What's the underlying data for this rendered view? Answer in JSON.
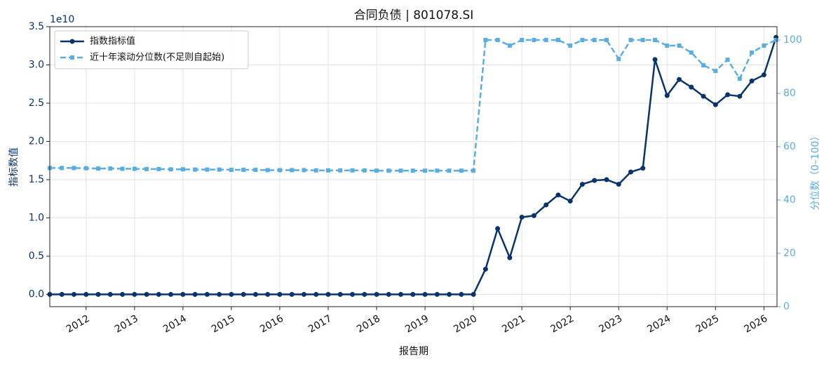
{
  "chart_data": {
    "type": "line",
    "title": "合同负债 | 801078.SI",
    "xlabel": "报告期",
    "ylabel": "指标数值",
    "y2label": "分位数（0–100）",
    "y_offset_label": "1e10",
    "x": [
      2011.25,
      2011.5,
      2011.75,
      2012,
      2012.25,
      2012.5,
      2012.75,
      2013,
      2013.25,
      2013.5,
      2013.75,
      2014,
      2014.25,
      2014.5,
      2014.75,
      2015,
      2015.25,
      2015.5,
      2015.75,
      2016,
      2016.25,
      2016.5,
      2016.75,
      2017,
      2017.25,
      2017.5,
      2017.75,
      2018,
      2018.25,
      2018.5,
      2018.75,
      2019,
      2019.25,
      2019.5,
      2019.75,
      2020,
      2020.25,
      2020.5,
      2020.75,
      2021,
      2021.25,
      2021.5,
      2021.75,
      2022,
      2022.25,
      2022.5,
      2022.75,
      2023,
      2023.25,
      2023.5,
      2023.75,
      2024,
      2024.25,
      2024.5,
      2024.75,
      2025,
      2025.25,
      2025.5,
      2025.75,
      2026,
      2026.25
    ],
    "xlim": [
      2011.25,
      2026.27
    ],
    "xticks": [
      2012,
      2013,
      2014,
      2015,
      2016,
      2017,
      2018,
      2019,
      2020,
      2021,
      2022,
      2023,
      2024,
      2025,
      2026
    ],
    "ylim": [
      -0.16,
      3.5
    ],
    "yticks": [
      {
        "value": 0,
        "label": "0.0"
      },
      {
        "value": 0.5,
        "label": "0.5"
      },
      {
        "value": 1,
        "label": "1.0"
      },
      {
        "value": 1.5,
        "label": "1.5"
      },
      {
        "value": 2,
        "label": "2.0"
      },
      {
        "value": 2.5,
        "label": "2.5"
      },
      {
        "value": 3,
        "label": "3.0"
      },
      {
        "value": 3.5,
        "label": "3.5"
      }
    ],
    "y2lim": [
      0,
      105
    ],
    "y2ticks": [
      0,
      20,
      40,
      60,
      80,
      100
    ],
    "grid": true,
    "legend": "upper left",
    "series": [
      {
        "name": "指数指标值",
        "color": "#08336b",
        "marker": "circle",
        "linestyle": "solid",
        "values": [
          0,
          0,
          0,
          0,
          0,
          0,
          0,
          0,
          0,
          0,
          0,
          0,
          0,
          0,
          0,
          0,
          0,
          0,
          0,
          0,
          0,
          0,
          0,
          0,
          0,
          0,
          0,
          0,
          0,
          0,
          0,
          0,
          0,
          0,
          0,
          0,
          0.33,
          0.86,
          0.48,
          1.01,
          1.03,
          1.17,
          1.3,
          1.22,
          1.44,
          1.49,
          1.5,
          1.44,
          1.6,
          1.65,
          3.07,
          2.6,
          2.81,
          2.71,
          2.59,
          2.48,
          2.61,
          2.59,
          2.79,
          2.87,
          3.36
        ]
      },
      {
        "name": "近十年滚动分位数(不足则自起始)",
        "color": "#5aade0",
        "marker": "square",
        "linestyle": "dashed",
        "axis": "y2",
        "values": [
          52,
          52,
          52,
          51.9,
          51.8,
          51.8,
          51.7,
          51.7,
          51.6,
          51.6,
          51.5,
          51.5,
          51.4,
          51.4,
          51.4,
          51.3,
          51.3,
          51.3,
          51.2,
          51.2,
          51.2,
          51.2,
          51.1,
          51.1,
          51.1,
          51.1,
          51.1,
          51,
          51,
          51,
          51,
          51,
          51,
          51,
          51,
          51,
          100,
          100,
          97.9,
          100,
          100,
          100,
          100,
          97.9,
          100,
          100,
          100,
          92.9,
          100,
          100,
          100,
          97.9,
          97.9,
          95.3,
          90.5,
          88.4,
          92.6,
          85.5,
          95.3,
          97.9,
          100
        ]
      }
    ]
  }
}
